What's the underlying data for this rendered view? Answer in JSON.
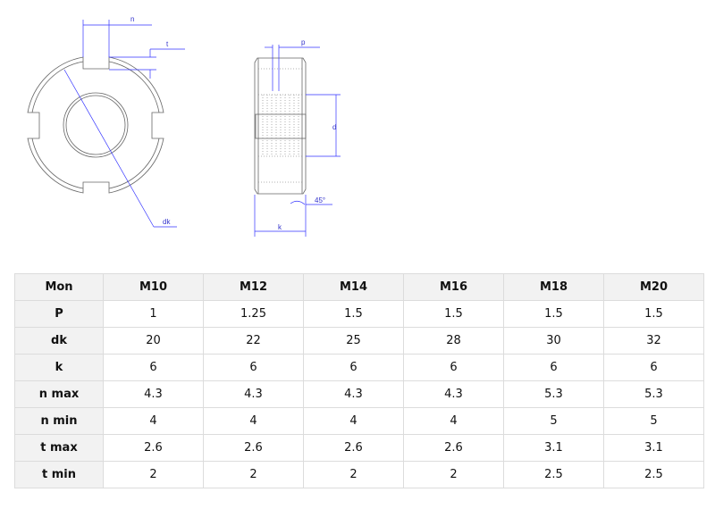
{
  "drawing": {
    "labels": {
      "n": "n",
      "t": "t",
      "dk": "dk",
      "p": "p",
      "d": "d",
      "angle": "45°",
      "k": "k"
    },
    "line_color": "#555555",
    "dimension_color": "#3333ff"
  },
  "table": {
    "headers": [
      "Mon",
      "M10",
      "M12",
      "M14",
      "M16",
      "M18",
      "M20"
    ],
    "rows": [
      {
        "label": "P",
        "values": [
          "1",
          "1.25",
          "1.5",
          "1.5",
          "1.5",
          "1.5"
        ]
      },
      {
        "label": "dk",
        "values": [
          "20",
          "22",
          "25",
          "28",
          "30",
          "32"
        ]
      },
      {
        "label": "k",
        "values": [
          "6",
          "6",
          "6",
          "6",
          "6",
          "6"
        ]
      },
      {
        "label": "n max",
        "values": [
          "4.3",
          "4.3",
          "4.3",
          "4.3",
          "5.3",
          "5.3"
        ]
      },
      {
        "label": "n min",
        "values": [
          "4",
          "4",
          "4",
          "4",
          "5",
          "5"
        ]
      },
      {
        "label": "t max",
        "values": [
          "2.6",
          "2.6",
          "2.6",
          "2.6",
          "3.1",
          "3.1"
        ]
      },
      {
        "label": "t min",
        "values": [
          "2",
          "2",
          "2",
          "2",
          "2.5",
          "2.5"
        ]
      }
    ]
  }
}
